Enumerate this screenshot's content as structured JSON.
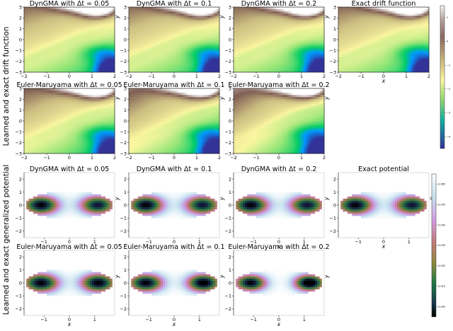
{
  "row_labels": {
    "drift": "Learned and exact drift function",
    "potential": "Learned and exact generalized potential"
  },
  "chart_data": [
    {
      "type": "heatmap",
      "group": "drift",
      "panels": [
        {
          "title": "DynGMA with Δt = 0.05",
          "x_label": "",
          "y_label": "y",
          "variant": 0
        },
        {
          "title": "DynGMA with Δt = 0.1",
          "x_label": "",
          "y_label": "y",
          "variant": 0
        },
        {
          "title": "DynGMA with Δt = 0.2",
          "x_label": "",
          "y_label": "y",
          "variant": 0
        },
        {
          "title": "Exact drift function",
          "x_label": "x",
          "y_label": "",
          "variant": 0
        },
        {
          "title": "Euler-Maruyama with Δt = 0.05",
          "x_label": "",
          "y_label": "y",
          "variant": 1
        },
        {
          "title": "Euler-Maruyama with Δt = 0.1",
          "x_label": "",
          "y_label": "y",
          "variant": 2
        },
        {
          "title": "Euler-Maruyama with Δt = 0.2",
          "x_label": "",
          "y_label": "y",
          "variant": 3
        }
      ],
      "x_ticks": [
        "−2",
        "−1",
        "0",
        "1",
        "2"
      ],
      "y_ticks": [
        "3",
        "2",
        "1",
        "0",
        "−1",
        "−2",
        "−3"
      ],
      "xlim": [
        -2,
        2
      ],
      "ylim": [
        -3,
        3
      ],
      "colormap": "terrain",
      "colorbar_ticks": [
        "1",
        "0",
        "−1",
        "−2",
        "−3",
        "−4"
      ]
    },
    {
      "type": "heatmap",
      "group": "potential",
      "panels": [
        {
          "title": "DynGMA with Δt = 0.05",
          "x_label": "",
          "y_label": "y",
          "variant": 0
        },
        {
          "title": "DynGMA with Δt = 0.1",
          "x_label": "",
          "y_label": "y",
          "variant": 0
        },
        {
          "title": "DynGMA with Δt = 0.2",
          "x_label": "x",
          "y_label": "y",
          "variant": 0
        },
        {
          "title": "Exact potential",
          "x_label": "x",
          "y_label": "y",
          "variant": 0
        },
        {
          "title": "Euler-Maruyama with Δt = 0.05",
          "x_label": "x",
          "y_label": "y",
          "variant": 1
        },
        {
          "title": "Euler-Maruyama with Δt = 0.1",
          "x_label": "x",
          "y_label": "y",
          "variant": 2
        },
        {
          "title": "Euler-Maruyama with Δt = 0.2",
          "x_label": "x",
          "y_label": "y",
          "variant": 3
        }
      ],
      "x_ticks": [
        "−1",
        "0",
        "1"
      ],
      "y_ticks": [
        "2",
        "1",
        "0",
        "−1",
        "−2"
      ],
      "xlim": [
        -1.6,
        1.6
      ],
      "ylim": [
        -2.8,
        2.8
      ],
      "colormap": "cubehelix",
      "colorbar_ticks": [
        "0.065",
        "0.055",
        "0.045",
        "0.035",
        "0.025",
        "0.015",
        "0.005"
      ]
    }
  ]
}
